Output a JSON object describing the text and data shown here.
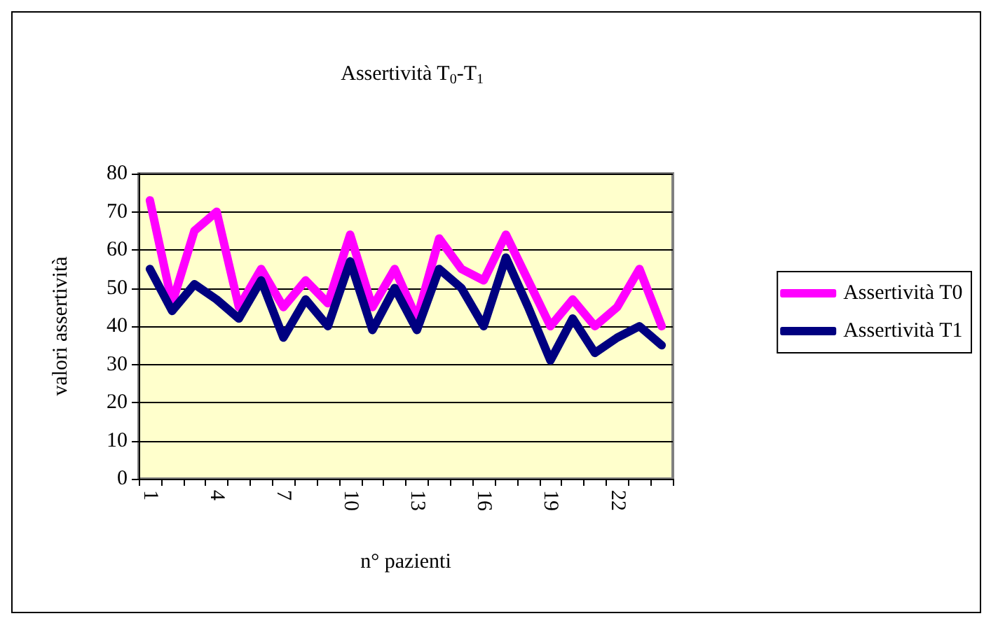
{
  "chart_data": {
    "type": "line",
    "title": "Assertività T$_{0}$-T$_{1}$",
    "xlabel": "n° pazienti",
    "ylabel": "valori assertività",
    "categories": [
      "1",
      null,
      null,
      "4",
      null,
      null,
      "7",
      null,
      null,
      "10",
      null,
      null,
      "13",
      null,
      null,
      "16",
      null,
      null,
      "19",
      null,
      null,
      "22",
      null,
      null
    ],
    "series": [
      {
        "name": "Assertività T0",
        "color": "#ff00ff",
        "values": [
          73,
          46,
          65,
          70,
          45,
          55,
          45,
          52,
          46,
          64,
          45,
          55,
          42,
          63,
          55,
          52,
          64,
          52,
          40,
          47,
          40,
          45,
          55,
          40
        ]
      },
      {
        "name": "Assertività T1",
        "color": "#000080",
        "values": [
          55,
          44,
          51,
          47,
          42,
          52,
          37,
          47,
          40,
          57,
          39,
          50,
          39,
          55,
          50,
          40,
          58,
          45,
          31,
          42,
          33,
          37,
          40,
          35
        ]
      }
    ],
    "ylim": [
      0,
      80
    ],
    "yticks": [
      0,
      10,
      20,
      30,
      40,
      50,
      60,
      70,
      80
    ],
    "grid": "y",
    "legend": "right",
    "marker": "none",
    "line_style": "solid"
  }
}
